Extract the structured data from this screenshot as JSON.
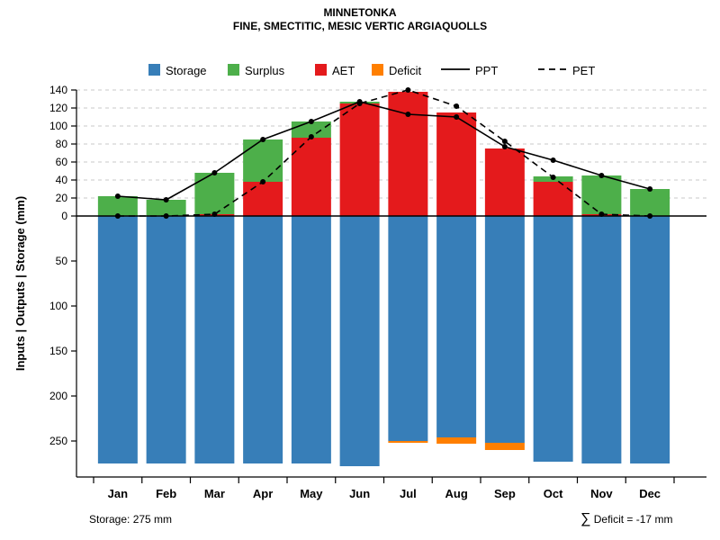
{
  "title": "MINNETONKA",
  "subtitle": "FINE, SMECTITIC, MESIC VERTIC ARGIAQUOLLS",
  "y_axis_label": "Inputs | Outputs | Storage  (mm)",
  "footer": {
    "storage_note": "Storage: 275 mm",
    "deficit_sigma": "∑",
    "deficit_note": " Deficit = -17 mm"
  },
  "colors": {
    "storage": "#377EB8",
    "surplus": "#4DAF4A",
    "aet": "#E41A1C",
    "deficit": "#FF7F00",
    "line": "#000000",
    "grid": "#C8C8C8"
  },
  "legend": [
    {
      "label": "Storage",
      "marker": "box",
      "color_key": "storage"
    },
    {
      "label": "Surplus",
      "marker": "box",
      "color_key": "surplus"
    },
    {
      "label": "AET",
      "marker": "box",
      "color_key": "aet"
    },
    {
      "label": "Deficit",
      "marker": "box",
      "color_key": "deficit"
    },
    {
      "label": "PPT",
      "marker": "line",
      "line_style": "solid"
    },
    {
      "label": "PET",
      "marker": "line",
      "line_style": "dashed"
    }
  ],
  "chart_data": {
    "type": "bar",
    "subtype": "stacked water-balance bars with overlaid lines",
    "categories": [
      "Jan",
      "Feb",
      "Mar",
      "Apr",
      "May",
      "Jun",
      "Jul",
      "Aug",
      "Sep",
      "Oct",
      "Nov",
      "Dec"
    ],
    "series": [
      {
        "name": "AET",
        "role": "bar-up",
        "color_key": "aet",
        "values": [
          0,
          0,
          2,
          38,
          87,
          125,
          138,
          115,
          75,
          38,
          2,
          0
        ]
      },
      {
        "name": "Surplus",
        "role": "bar-up-stacked",
        "color_key": "surplus",
        "values": [
          22,
          18,
          46,
          47,
          18,
          2,
          0,
          0,
          0,
          6,
          43,
          30
        ]
      },
      {
        "name": "Storage",
        "role": "bar-down",
        "color_key": "storage",
        "values": [
          275,
          275,
          275,
          275,
          275,
          278,
          250,
          246,
          252,
          273,
          275,
          275
        ]
      },
      {
        "name": "Deficit",
        "role": "bar-down-stacked",
        "color_key": "deficit",
        "values": [
          0,
          0,
          0,
          0,
          0,
          0,
          2,
          7,
          8,
          0,
          0,
          0
        ]
      },
      {
        "name": "PPT",
        "role": "line-solid",
        "color_key": "line",
        "values": [
          22,
          18,
          48,
          85,
          105,
          127,
          113,
          110,
          77,
          62,
          45,
          30
        ]
      },
      {
        "name": "PET",
        "role": "line-dashed",
        "color_key": "line",
        "values": [
          0,
          0,
          2,
          38,
          88,
          125,
          140,
          122,
          83,
          43,
          2,
          0
        ]
      }
    ],
    "yticks_above_zero": [
      0,
      20,
      40,
      60,
      80,
      100,
      120,
      140
    ],
    "yticks_below_zero": [
      50,
      100,
      150,
      200,
      250
    ],
    "ylim": [
      -290,
      140
    ],
    "grid": "dashed horizontal gridlines above zero only",
    "legend_position": "top",
    "storage_capacity_mm": 275,
    "total_deficit_mm": -17
  }
}
